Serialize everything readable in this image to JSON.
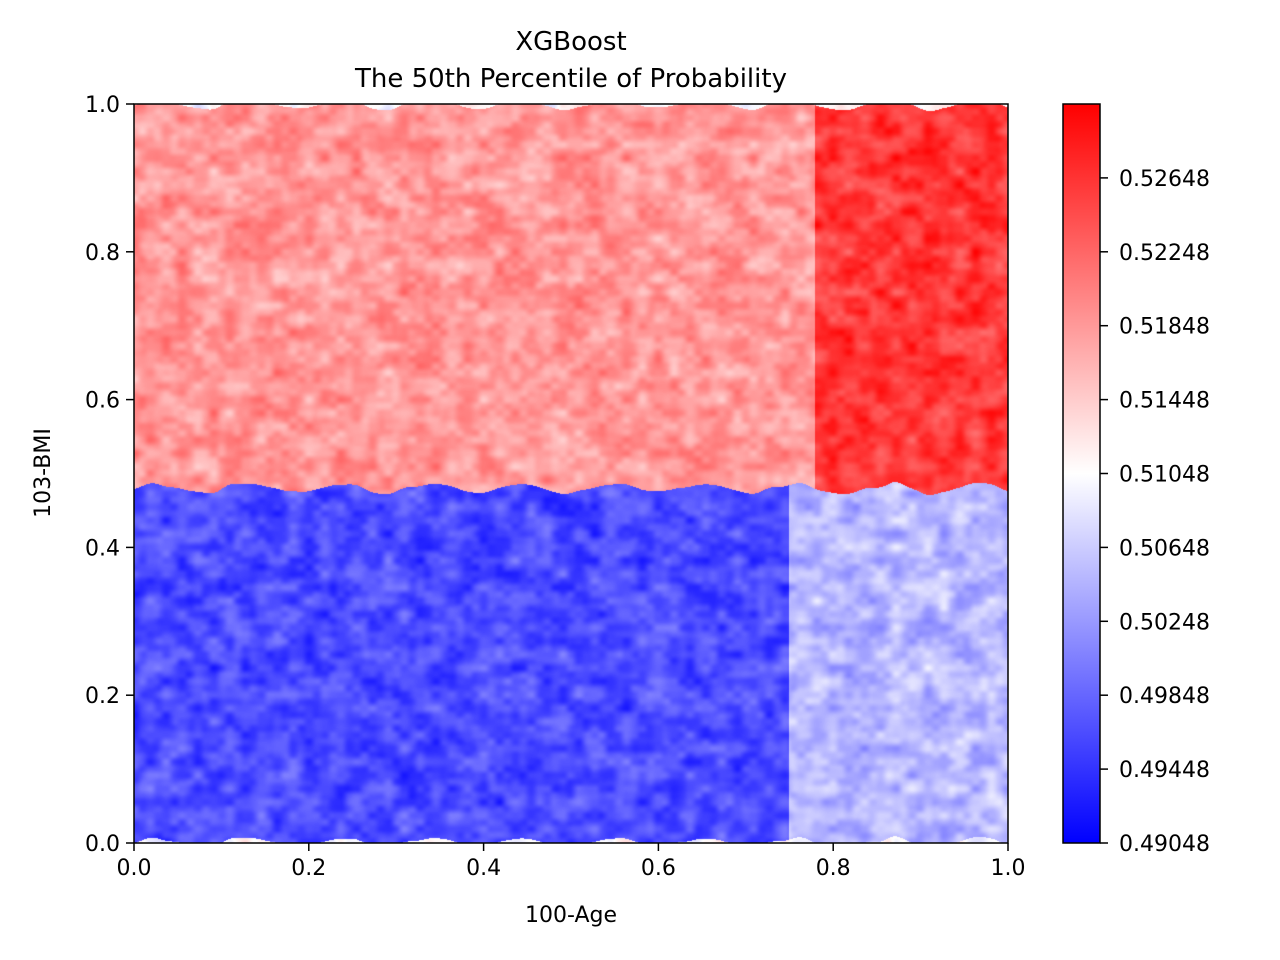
{
  "chart_data": {
    "type": "heatmap",
    "title": "XGBoost",
    "subtitle": "The 50th Percentile of Probability",
    "xlabel": "100-Age",
    "ylabel": "103-BMI",
    "xlim": [
      0.0,
      1.0
    ],
    "ylim": [
      0.0,
      1.0
    ],
    "x_ticks": [
      0.0,
      0.2,
      0.4,
      0.6,
      0.8,
      1.0
    ],
    "x_tick_labels": [
      "0.0",
      "0.2",
      "0.4",
      "0.6",
      "0.8",
      "1.0"
    ],
    "y_ticks": [
      0.0,
      0.2,
      0.4,
      0.6,
      0.8,
      1.0
    ],
    "y_tick_labels": [
      "0.0",
      "0.2",
      "0.4",
      "0.6",
      "0.8",
      "1.0"
    ],
    "grid": false,
    "colormap": "bwr",
    "colormap_colors": [
      "#0000ff",
      "#ffffff",
      "#ff0000"
    ],
    "colorbar": {
      "range": [
        0.49048,
        0.53048
      ],
      "ticks": [
        0.49048,
        0.49448,
        0.49848,
        0.50248,
        0.50648,
        0.51048,
        0.51448,
        0.51848,
        0.52248,
        0.52648
      ],
      "tick_labels": [
        "0.49048",
        "0.49448",
        "0.49848",
        "0.50248",
        "0.50648",
        "0.51048",
        "0.51448",
        "0.51848",
        "0.52248",
        "0.52648"
      ]
    },
    "regions": [
      {
        "name": "lower-left",
        "x_range": [
          0.0,
          0.75
        ],
        "y_range": [
          0.0,
          0.48
        ],
        "value": 0.4965
      },
      {
        "name": "lower-right",
        "x_range": [
          0.75,
          1.0
        ],
        "y_range": [
          0.0,
          0.48
        ],
        "value": 0.505
      },
      {
        "name": "upper-left",
        "x_range": [
          0.0,
          0.78
        ],
        "y_range": [
          0.48,
          1.0
        ],
        "value": 0.5185
      },
      {
        "name": "upper-right",
        "x_range": [
          0.78,
          1.0
        ],
        "y_range": [
          0.48,
          1.0
        ],
        "value": 0.526
      }
    ],
    "boundary_y": 0.48,
    "noise_amplitude": 0.0045
  }
}
